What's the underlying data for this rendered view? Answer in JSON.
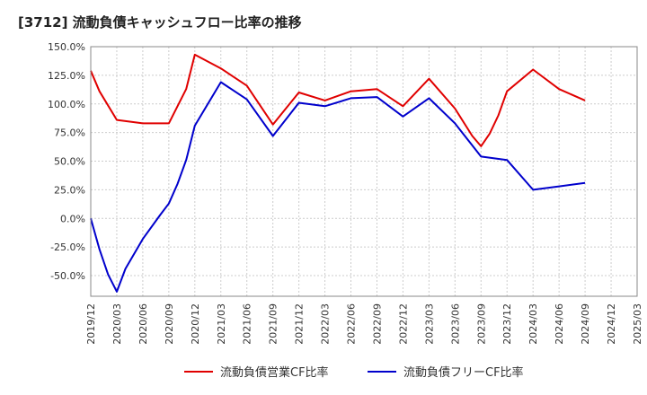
{
  "chart_data": {
    "type": "line",
    "title": "[3712]  流動負債キャッシュフロー比率の推移",
    "xlabel": "",
    "ylabel": "",
    "ylim": [
      -68,
      150
    ],
    "yticks": [
      150,
      125,
      100,
      75,
      50,
      25,
      0,
      -25,
      -50
    ],
    "ytick_labels": [
      "150.0%",
      "125.0%",
      "100.0%",
      "75.0%",
      "50.0%",
      "25.0%",
      "0.0%",
      "-25.0%",
      "-50.0%"
    ],
    "x_tick_labels": [
      "2019/12",
      "2020/03",
      "2020/06",
      "2020/09",
      "2020/12",
      "2021/03",
      "2021/06",
      "2021/09",
      "2021/12",
      "2022/03",
      "2022/06",
      "2022/09",
      "2022/12",
      "2023/03",
      "2023/06",
      "2023/09",
      "2023/12",
      "2024/03",
      "2024/06",
      "2024/09",
      "2024/12",
      "2025/03"
    ],
    "x_range": [
      0,
      63
    ],
    "grid": true,
    "legend_position": "bottom",
    "series": [
      {
        "name": "流動負債営業CF比率",
        "color": "#e00000",
        "points": [
          [
            0,
            129
          ],
          [
            1,
            111
          ],
          [
            3,
            86
          ],
          [
            6,
            83
          ],
          [
            9,
            83
          ],
          [
            11,
            113
          ],
          [
            12,
            143
          ],
          [
            15,
            131
          ],
          [
            18,
            116
          ],
          [
            21,
            82
          ],
          [
            24,
            110
          ],
          [
            27,
            103
          ],
          [
            30,
            111
          ],
          [
            33,
            113
          ],
          [
            36,
            98
          ],
          [
            39,
            122
          ],
          [
            42,
            96
          ],
          [
            44,
            72
          ],
          [
            45,
            63
          ],
          [
            46,
            74
          ],
          [
            47,
            90
          ],
          [
            48,
            111
          ],
          [
            51,
            130
          ],
          [
            54,
            113
          ],
          [
            57,
            103
          ]
        ]
      },
      {
        "name": "流動負債フリーCF比率",
        "color": "#0000cc",
        "points": [
          [
            0,
            0
          ],
          [
            1,
            -27
          ],
          [
            2,
            -49
          ],
          [
            3,
            -64
          ],
          [
            4,
            -44
          ],
          [
            6,
            -18
          ],
          [
            8,
            3
          ],
          [
            9,
            13
          ],
          [
            10,
            30
          ],
          [
            11,
            51
          ],
          [
            12,
            81
          ],
          [
            15,
            119
          ],
          [
            18,
            104
          ],
          [
            21,
            72
          ],
          [
            24,
            101
          ],
          [
            27,
            98
          ],
          [
            30,
            105
          ],
          [
            33,
            106
          ],
          [
            36,
            89
          ],
          [
            39,
            105
          ],
          [
            42,
            83
          ],
          [
            45,
            54
          ],
          [
            48,
            51
          ],
          [
            51,
            25
          ],
          [
            54,
            28
          ],
          [
            57,
            31
          ]
        ]
      }
    ]
  }
}
